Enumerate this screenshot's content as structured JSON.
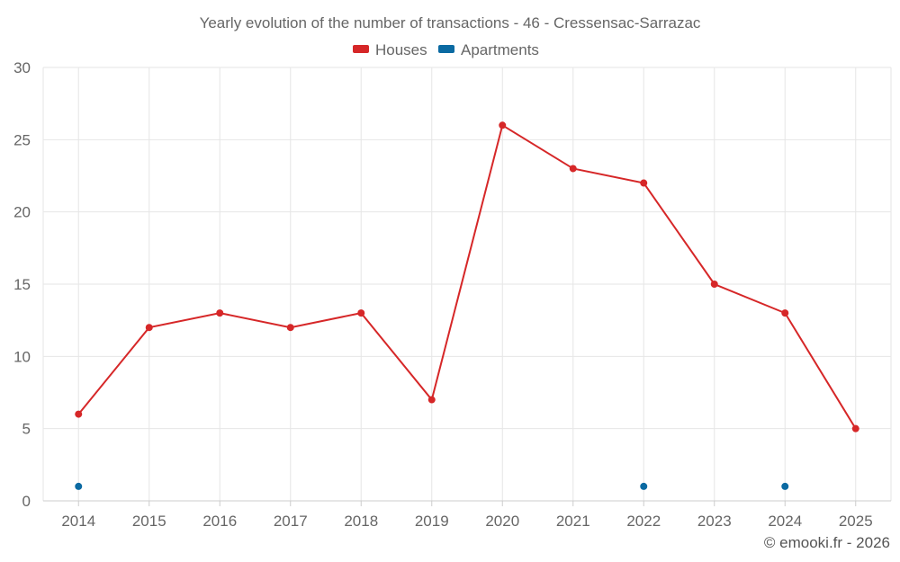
{
  "chart_data": {
    "type": "line",
    "title": "Yearly evolution of the number of transactions - 46 - Cressensac-Sarrazac",
    "categories": [
      "2014",
      "2015",
      "2016",
      "2017",
      "2018",
      "2019",
      "2020",
      "2021",
      "2022",
      "2023",
      "2024",
      "2025"
    ],
    "series": [
      {
        "name": "Houses",
        "color": "#d62728",
        "values": [
          6,
          12,
          13,
          12,
          13,
          7,
          26,
          23,
          22,
          15,
          13,
          5
        ],
        "style": "line-with-markers"
      },
      {
        "name": "Apartments",
        "color": "#0b6aa2",
        "values": [
          1,
          null,
          null,
          null,
          null,
          null,
          null,
          null,
          1,
          null,
          1,
          null
        ],
        "style": "markers"
      }
    ],
    "y_ticks": [
      "0",
      "5",
      "10",
      "15",
      "20",
      "25",
      "30"
    ],
    "ylim": [
      0,
      30
    ],
    "xlabel": "",
    "ylabel": "",
    "grid": true,
    "legend": "top-center"
  },
  "footer": {
    "credit": "© emooki.fr - 2026"
  },
  "colors": {
    "grid": "#e6e6e6",
    "axis": "#cccccc",
    "text": "#666666"
  }
}
